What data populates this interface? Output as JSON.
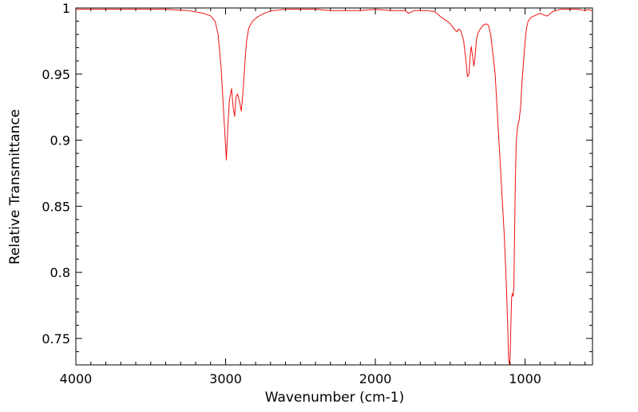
{
  "chart_data": {
    "type": "line",
    "title": "",
    "xlabel": "Wavenumber (cm-1)",
    "ylabel": "Relative Transmittance",
    "xlim": [
      4000,
      550
    ],
    "ylim": [
      0.73,
      1.0
    ],
    "x_reversed": true,
    "grid": false,
    "legend": "none",
    "x_ticks": [
      4000,
      3000,
      2000,
      1000
    ],
    "x_tick_labels": [
      "4000",
      "3000",
      "2000",
      "1000"
    ],
    "y_ticks": [
      0.75,
      0.8,
      0.85,
      0.9,
      0.95,
      1.0
    ],
    "y_tick_labels": [
      "0.75",
      "0.8",
      "0.85",
      "0.9",
      "0.95",
      "1"
    ],
    "line_color": "#ee1111",
    "series": [
      {
        "x": [
          4000,
          3800,
          3600,
          3400,
          3250,
          3150,
          3100,
          3070,
          3050,
          3030,
          3010,
          2995,
          2985,
          2975,
          2960,
          2950,
          2940,
          2930,
          2920,
          2905,
          2895,
          2885,
          2870,
          2860,
          2845,
          2820,
          2790,
          2760,
          2720,
          2680,
          2600,
          2500,
          2400,
          2300,
          2200,
          2100,
          2000,
          1900,
          1850,
          1800,
          1780,
          1760,
          1740,
          1720,
          1700,
          1650,
          1600,
          1560,
          1520,
          1500,
          1480,
          1465,
          1455,
          1445,
          1430,
          1410,
          1395,
          1385,
          1375,
          1368,
          1360,
          1350,
          1342,
          1335,
          1325,
          1315,
          1300,
          1280,
          1260,
          1245,
          1230,
          1200,
          1180,
          1160,
          1140,
          1125,
          1115,
          1110,
          1105,
          1100,
          1095,
          1090,
          1085,
          1080,
          1075,
          1070,
          1065,
          1060,
          1055,
          1050,
          1045,
          1040,
          1030,
          1020,
          1010,
          1000,
          990,
          980,
          960,
          940,
          920,
          900,
          880,
          860,
          850,
          840,
          820,
          800,
          760,
          720,
          680,
          640,
          600,
          575,
          560,
          550
        ],
        "y": [
          0.999,
          0.999,
          0.999,
          0.999,
          0.998,
          0.996,
          0.994,
          0.99,
          0.98,
          0.955,
          0.915,
          0.885,
          0.91,
          0.93,
          0.939,
          0.925,
          0.918,
          0.933,
          0.935,
          0.928,
          0.922,
          0.935,
          0.96,
          0.975,
          0.985,
          0.99,
          0.993,
          0.995,
          0.997,
          0.998,
          0.999,
          0.999,
          0.999,
          0.998,
          0.998,
          0.998,
          0.999,
          0.998,
          0.998,
          0.998,
          0.996,
          0.997,
          0.998,
          0.998,
          0.998,
          0.998,
          0.997,
          0.993,
          0.99,
          0.988,
          0.985,
          0.983,
          0.982,
          0.984,
          0.983,
          0.975,
          0.96,
          0.948,
          0.95,
          0.963,
          0.971,
          0.963,
          0.956,
          0.962,
          0.976,
          0.981,
          0.984,
          0.987,
          0.988,
          0.987,
          0.98,
          0.95,
          0.91,
          0.87,
          0.83,
          0.79,
          0.755,
          0.735,
          0.73,
          0.735,
          0.76,
          0.781,
          0.784,
          0.782,
          0.79,
          0.83,
          0.87,
          0.895,
          0.905,
          0.91,
          0.913,
          0.915,
          0.925,
          0.945,
          0.96,
          0.975,
          0.985,
          0.99,
          0.993,
          0.994,
          0.995,
          0.996,
          0.995,
          0.994,
          0.994,
          0.995,
          0.997,
          0.998,
          0.999,
          0.999,
          0.999,
          0.999,
          0.998,
          0.999,
          0.998,
          0.998
        ]
      }
    ]
  }
}
